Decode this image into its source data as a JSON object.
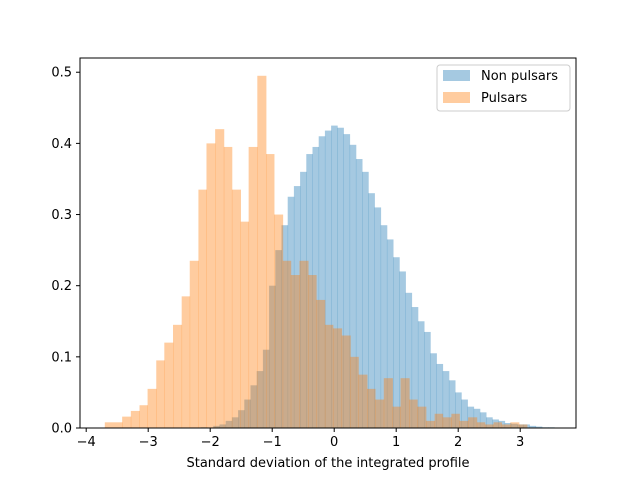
{
  "chart_data": {
    "type": "histogram",
    "title": "",
    "xlabel": "Standard deviation of the integrated profile",
    "ylabel": "",
    "xlim": [
      -4.1,
      3.9
    ],
    "ylim": [
      0,
      0.52
    ],
    "xticks": [
      -4,
      -3,
      -2,
      -1,
      0,
      1,
      2,
      3
    ],
    "xtick_labels": [
      "−4",
      "−3",
      "−2",
      "−1",
      "0",
      "1",
      "2",
      "3"
    ],
    "yticks": [
      0.0,
      0.1,
      0.2,
      0.3,
      0.4,
      0.5
    ],
    "ytick_labels": [
      "0.0",
      "0.1",
      "0.2",
      "0.3",
      "0.4",
      "0.5"
    ],
    "grid": false,
    "legend_position": "top-right",
    "series": [
      {
        "name": "Non pulsars",
        "color": "#1f77b4",
        "alpha": 0.4,
        "bins": [
          [
            -2.15,
            -2.05,
            0.001
          ],
          [
            -1.95,
            -1.85,
            0.003
          ],
          [
            -1.85,
            -1.75,
            0.005
          ],
          [
            -1.75,
            -1.65,
            0.01
          ],
          [
            -1.65,
            -1.55,
            0.015
          ],
          [
            -1.55,
            -1.45,
            0.025
          ],
          [
            -1.45,
            -1.35,
            0.04
          ],
          [
            -1.35,
            -1.25,
            0.06
          ],
          [
            -1.25,
            -1.15,
            0.08
          ],
          [
            -1.15,
            -1.05,
            0.11
          ],
          [
            -1.05,
            -0.95,
            0.2
          ],
          [
            -0.95,
            -0.85,
            0.25
          ],
          [
            -0.85,
            -0.75,
            0.285
          ],
          [
            -0.75,
            -0.65,
            0.325
          ],
          [
            -0.65,
            -0.55,
            0.34
          ],
          [
            -0.55,
            -0.45,
            0.36
          ],
          [
            -0.45,
            -0.35,
            0.385
          ],
          [
            -0.35,
            -0.25,
            0.395
          ],
          [
            -0.25,
            -0.15,
            0.41
          ],
          [
            -0.15,
            -0.05,
            0.418
          ],
          [
            -0.05,
            0.05,
            0.425
          ],
          [
            0.05,
            0.15,
            0.422
          ],
          [
            0.15,
            0.25,
            0.413
          ],
          [
            0.25,
            0.35,
            0.398
          ],
          [
            0.35,
            0.45,
            0.378
          ],
          [
            0.45,
            0.55,
            0.36
          ],
          [
            0.55,
            0.65,
            0.33
          ],
          [
            0.65,
            0.75,
            0.31
          ],
          [
            0.75,
            0.85,
            0.285
          ],
          [
            0.85,
            0.95,
            0.265
          ],
          [
            0.95,
            1.05,
            0.24
          ],
          [
            1.05,
            1.15,
            0.22
          ],
          [
            1.15,
            1.25,
            0.19
          ],
          [
            1.25,
            1.35,
            0.17
          ],
          [
            1.35,
            1.45,
            0.15
          ],
          [
            1.45,
            1.55,
            0.135
          ],
          [
            1.55,
            1.65,
            0.105
          ],
          [
            1.65,
            1.75,
            0.09
          ],
          [
            1.75,
            1.85,
            0.08
          ],
          [
            1.85,
            1.95,
            0.067
          ],
          [
            1.95,
            2.05,
            0.05
          ],
          [
            2.05,
            2.15,
            0.04
          ],
          [
            2.15,
            2.25,
            0.03
          ],
          [
            2.25,
            2.35,
            0.027
          ],
          [
            2.35,
            2.45,
            0.022
          ],
          [
            2.45,
            2.55,
            0.015
          ],
          [
            2.55,
            2.65,
            0.012
          ],
          [
            2.65,
            2.75,
            0.01
          ],
          [
            2.75,
            2.85,
            0.007
          ],
          [
            2.85,
            2.95,
            0.006
          ],
          [
            2.95,
            3.05,
            0.005
          ],
          [
            3.05,
            3.15,
            0.005
          ],
          [
            3.15,
            3.25,
            0.003
          ],
          [
            3.25,
            3.35,
            0.002
          ],
          [
            3.35,
            3.45,
            0.001
          ],
          [
            3.45,
            3.55,
            0.001
          ]
        ]
      },
      {
        "name": "Pulsars",
        "color": "#ff7f0e",
        "alpha": 0.4,
        "bins": [
          [
            -3.7,
            -3.42,
            0.008
          ],
          [
            -3.42,
            -3.28,
            0.016
          ],
          [
            -3.28,
            -3.14,
            0.024
          ],
          [
            -3.14,
            -3.01,
            0.032
          ],
          [
            -3.01,
            -2.87,
            0.055
          ],
          [
            -2.87,
            -2.74,
            0.095
          ],
          [
            -2.74,
            -2.6,
            0.12
          ],
          [
            -2.6,
            -2.46,
            0.145
          ],
          [
            -2.46,
            -2.33,
            0.185
          ],
          [
            -2.33,
            -2.19,
            0.235
          ],
          [
            -2.19,
            -2.06,
            0.335
          ],
          [
            -2.06,
            -1.92,
            0.4
          ],
          [
            -1.92,
            -1.78,
            0.42
          ],
          [
            -1.78,
            -1.65,
            0.395
          ],
          [
            -1.65,
            -1.51,
            0.335
          ],
          [
            -1.51,
            -1.38,
            0.29
          ],
          [
            -1.38,
            -1.24,
            0.395
          ],
          [
            -1.24,
            -1.1,
            0.495
          ],
          [
            -1.1,
            -0.97,
            0.385
          ],
          [
            -0.97,
            -0.83,
            0.3
          ],
          [
            -0.83,
            -0.7,
            0.235
          ],
          [
            -0.7,
            -0.56,
            0.215
          ],
          [
            -0.56,
            -0.42,
            0.235
          ],
          [
            -0.42,
            -0.29,
            0.215
          ],
          [
            -0.29,
            -0.15,
            0.18
          ],
          [
            -0.15,
            -0.02,
            0.145
          ],
          [
            -0.02,
            0.12,
            0.14
          ],
          [
            0.12,
            0.26,
            0.13
          ],
          [
            0.26,
            0.39,
            0.1
          ],
          [
            0.39,
            0.53,
            0.075
          ],
          [
            0.53,
            0.66,
            0.055
          ],
          [
            0.66,
            0.8,
            0.04
          ],
          [
            0.8,
            0.94,
            0.07
          ],
          [
            0.94,
            1.07,
            0.03
          ],
          [
            1.07,
            1.21,
            0.07
          ],
          [
            1.21,
            1.34,
            0.04
          ],
          [
            1.34,
            1.48,
            0.03
          ],
          [
            1.48,
            1.62,
            0.01
          ],
          [
            1.62,
            1.75,
            0.02
          ],
          [
            1.75,
            1.89,
            0.015
          ],
          [
            1.89,
            2.02,
            0.02
          ],
          [
            2.02,
            2.16,
            0.01
          ],
          [
            2.16,
            2.3,
            0.015
          ],
          [
            2.3,
            2.43,
            0.008
          ],
          [
            2.43,
            2.57,
            0.005
          ],
          [
            2.57,
            2.7,
            0.008
          ],
          [
            2.7,
            2.84,
            0.005
          ],
          [
            2.84,
            2.98,
            0.008
          ],
          [
            2.98,
            3.11,
            0.005
          ]
        ]
      }
    ]
  }
}
